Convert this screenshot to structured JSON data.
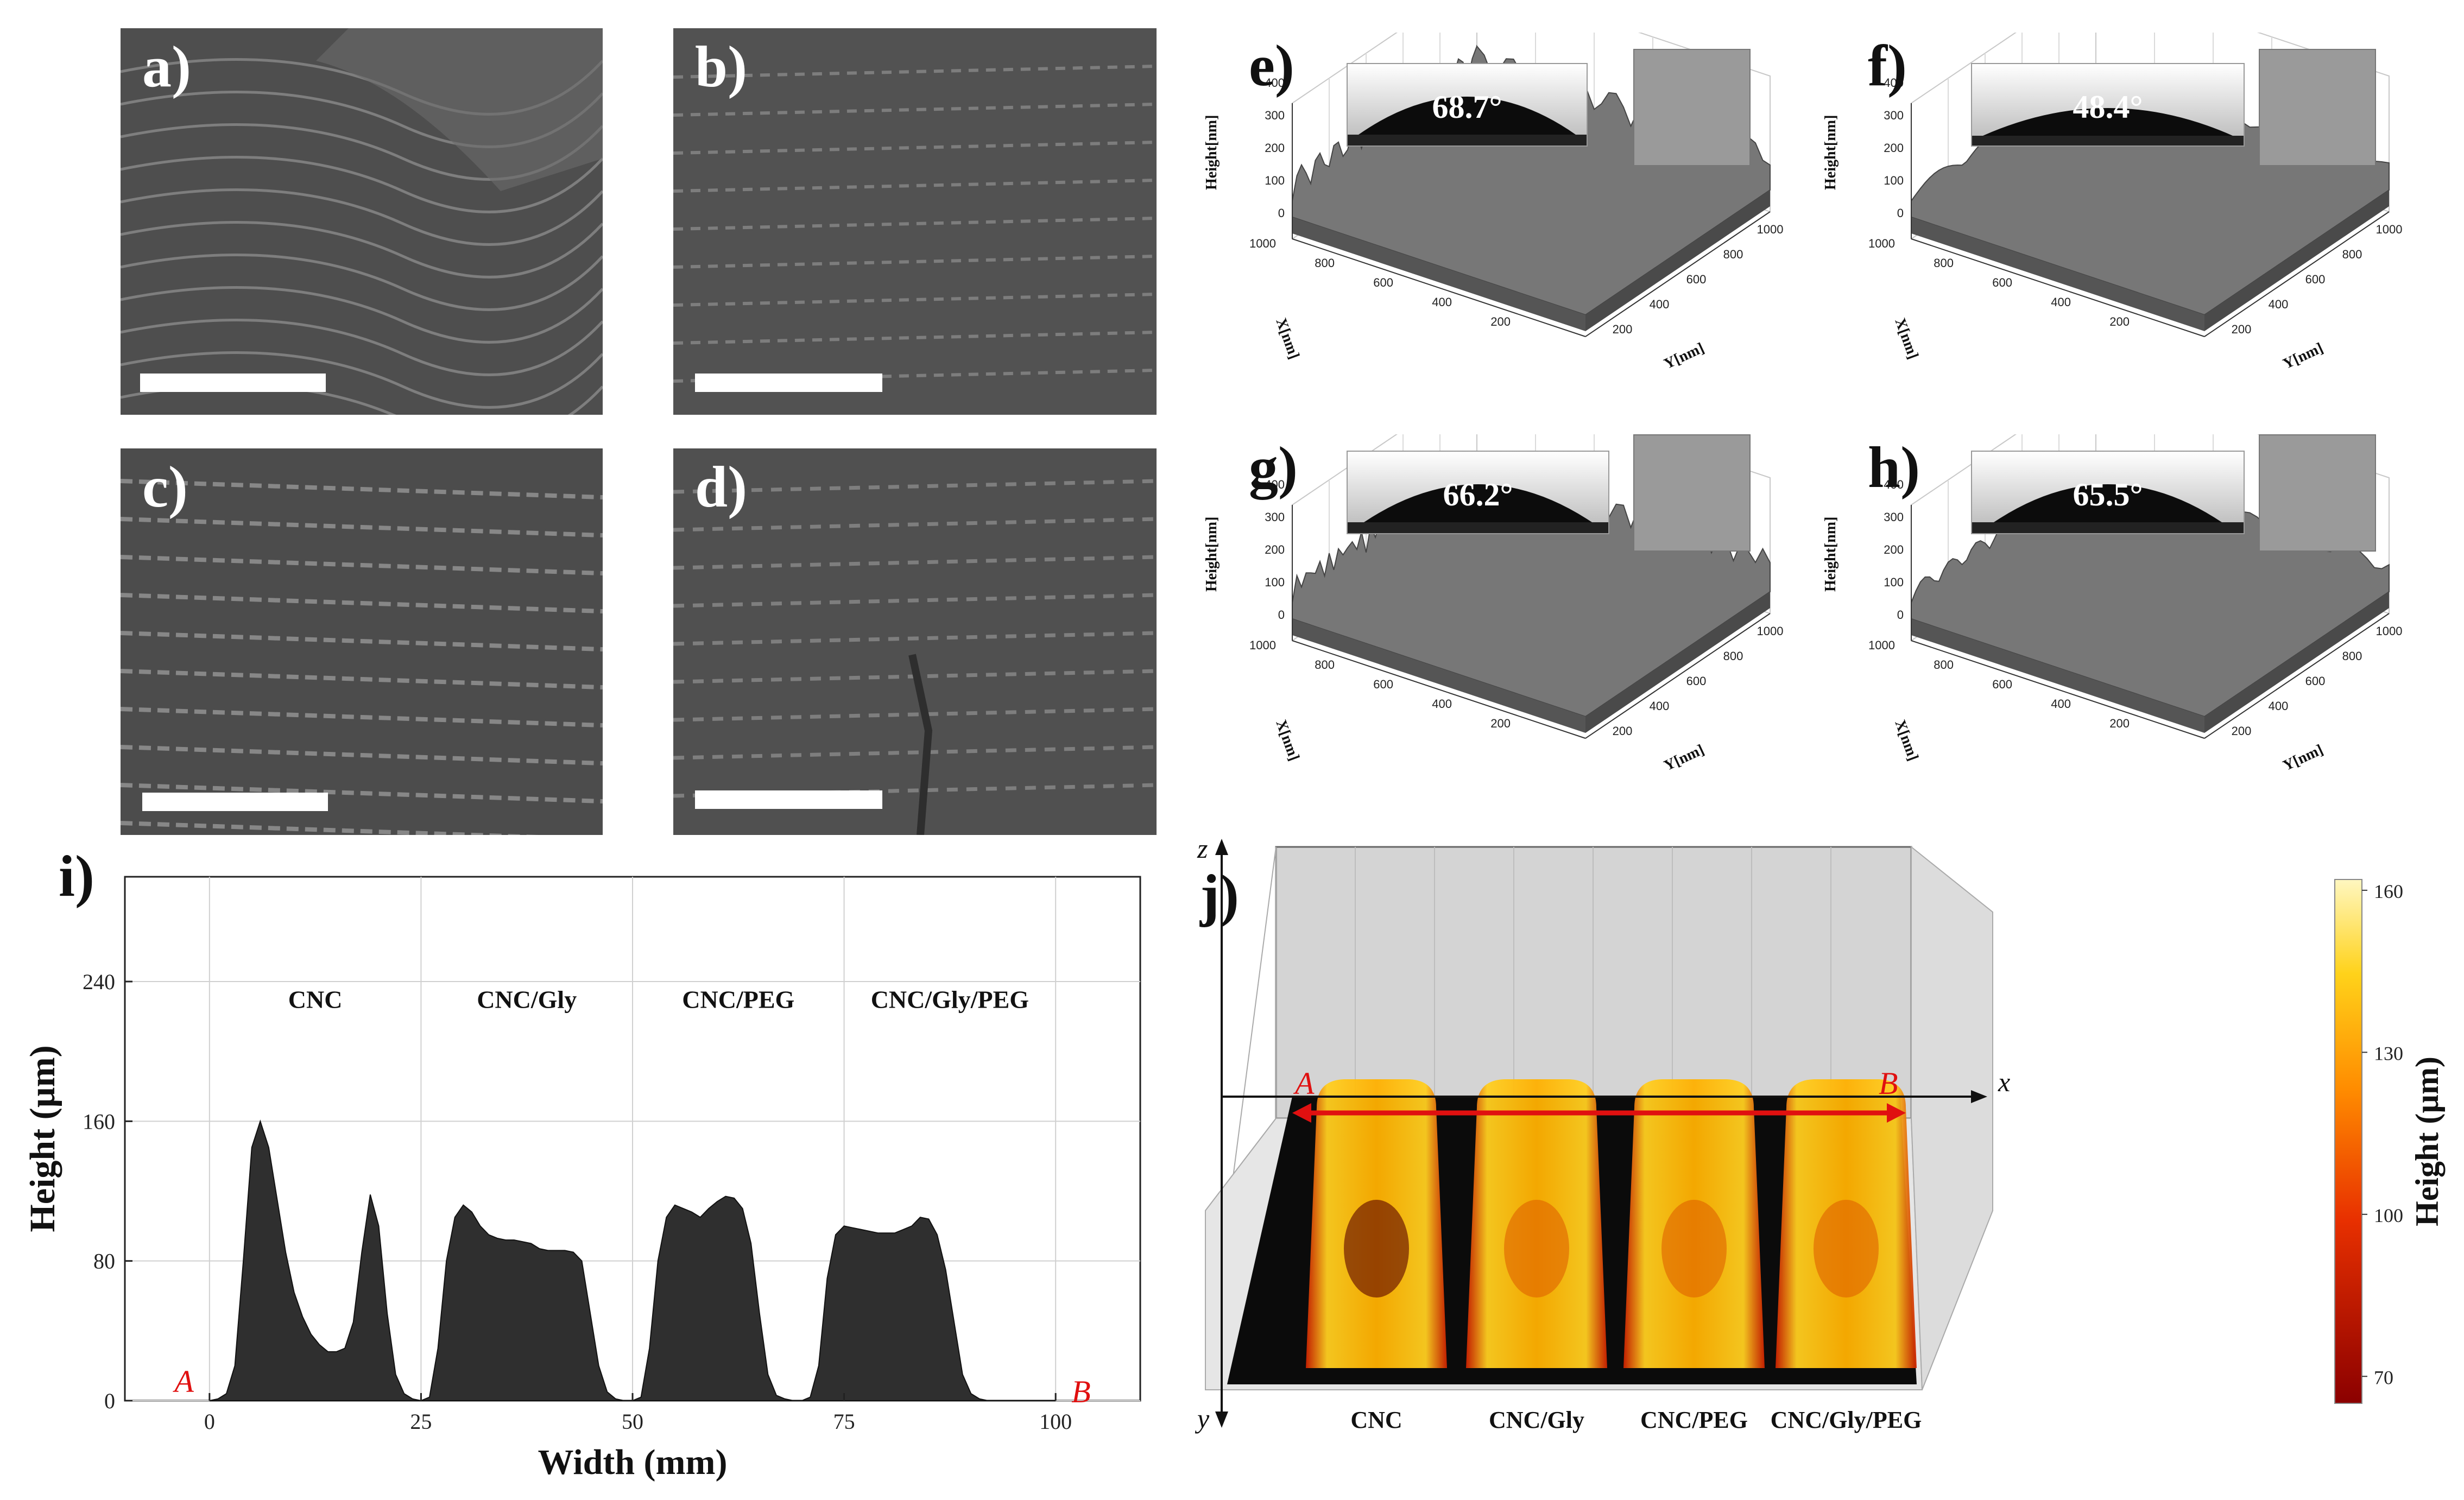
{
  "panels": {
    "a": "a)",
    "b": "b)",
    "c": "c)",
    "d": "d)",
    "e": "e)",
    "f": "f)",
    "g": "g)",
    "h": "h)",
    "i": "i)",
    "j": "j)"
  },
  "afm": {
    "height_label": "Height[nm]",
    "x_label": "X[nm]",
    "y_label": "Y[nm]",
    "z_ticks": [
      "0",
      "100",
      "200",
      "300",
      "400"
    ],
    "xy_ticks": [
      "200",
      "400",
      "600",
      "800",
      "1000"
    ],
    "contact_angles": {
      "e": "68.7°",
      "f": "48.4°",
      "g": "66.2°",
      "h": "65.5°"
    }
  },
  "chart_data": [
    {
      "type": "area",
      "panel": "i)",
      "xlabel": "Width (mm)",
      "ylabel": "Height (µm)",
      "xlim": [
        -10,
        110
      ],
      "ylim": [
        0,
        300
      ],
      "x_ticks": [
        "0",
        "25",
        "50",
        "75",
        "100"
      ],
      "y_ticks": [
        "0",
        "80",
        "160",
        "240"
      ],
      "grid": true,
      "region_labels": [
        {
          "text": "CNC",
          "x": 12.5
        },
        {
          "text": "CNC/Gly",
          "x": 37.5
        },
        {
          "text": "CNC/PEG",
          "x": 62.5
        },
        {
          "text": "CNC/Gly/PEG",
          "x": 87.5
        }
      ],
      "endpoints": {
        "start": "A",
        "end": "B"
      },
      "x": [
        0,
        1,
        2,
        3,
        4,
        5,
        6,
        7,
        8,
        9,
        10,
        11,
        12,
        13,
        14,
        15,
        16,
        17,
        18,
        19,
        20,
        21,
        22,
        23,
        24,
        25,
        26,
        27,
        28,
        29,
        30,
        31,
        32,
        33,
        34,
        35,
        36,
        37,
        38,
        39,
        40,
        41,
        42,
        43,
        44,
        45,
        46,
        47,
        48,
        49,
        50,
        51,
        52,
        53,
        54,
        55,
        56,
        57,
        58,
        59,
        60,
        61,
        62,
        63,
        64,
        65,
        66,
        67,
        68,
        69,
        70,
        71,
        72,
        73,
        74,
        75,
        76,
        77,
        78,
        79,
        80,
        81,
        82,
        83,
        84,
        85,
        86,
        87,
        88,
        89,
        90,
        91,
        92,
        93,
        94,
        95,
        96,
        97,
        98,
        99,
        100
      ],
      "values": [
        0,
        1,
        4,
        20,
        80,
        145,
        160,
        145,
        115,
        85,
        62,
        48,
        38,
        32,
        28,
        28,
        30,
        45,
        85,
        118,
        100,
        50,
        15,
        4,
        1,
        0,
        2,
        30,
        80,
        105,
        112,
        108,
        100,
        95,
        93,
        92,
        92,
        91,
        90,
        87,
        86,
        86,
        86,
        85,
        80,
        50,
        20,
        5,
        1,
        0,
        0,
        2,
        30,
        80,
        105,
        112,
        110,
        108,
        105,
        110,
        114,
        117,
        116,
        110,
        90,
        50,
        15,
        3,
        1,
        0,
        0,
        2,
        20,
        70,
        95,
        100,
        99,
        98,
        97,
        96,
        96,
        96,
        98,
        100,
        105,
        104,
        95,
        75,
        45,
        15,
        4,
        1,
        0,
        0,
        0,
        0,
        0,
        0,
        0,
        0,
        0
      ]
    },
    {
      "type": "heatmap",
      "panel": "j)",
      "axes": {
        "x": "x",
        "y": "y",
        "z": "z"
      },
      "categories": [
        "CNC",
        "CNC/Gly",
        "CNC/PEG",
        "CNC/Gly/PEG"
      ],
      "colorbar_label": "Height (µm)",
      "colorbar_ticks": [
        "70",
        "100",
        "130",
        "160"
      ],
      "colorbar_range": [
        65,
        162
      ],
      "endpoints": {
        "start": "A",
        "end": "B"
      }
    }
  ],
  "colors": {
    "area_fill": "#2f2f2f",
    "marker_red": "#e01010",
    "heat_low": "#7a0000",
    "heat_mid": "#ff6a00",
    "heat_high": "#fff7c0"
  }
}
